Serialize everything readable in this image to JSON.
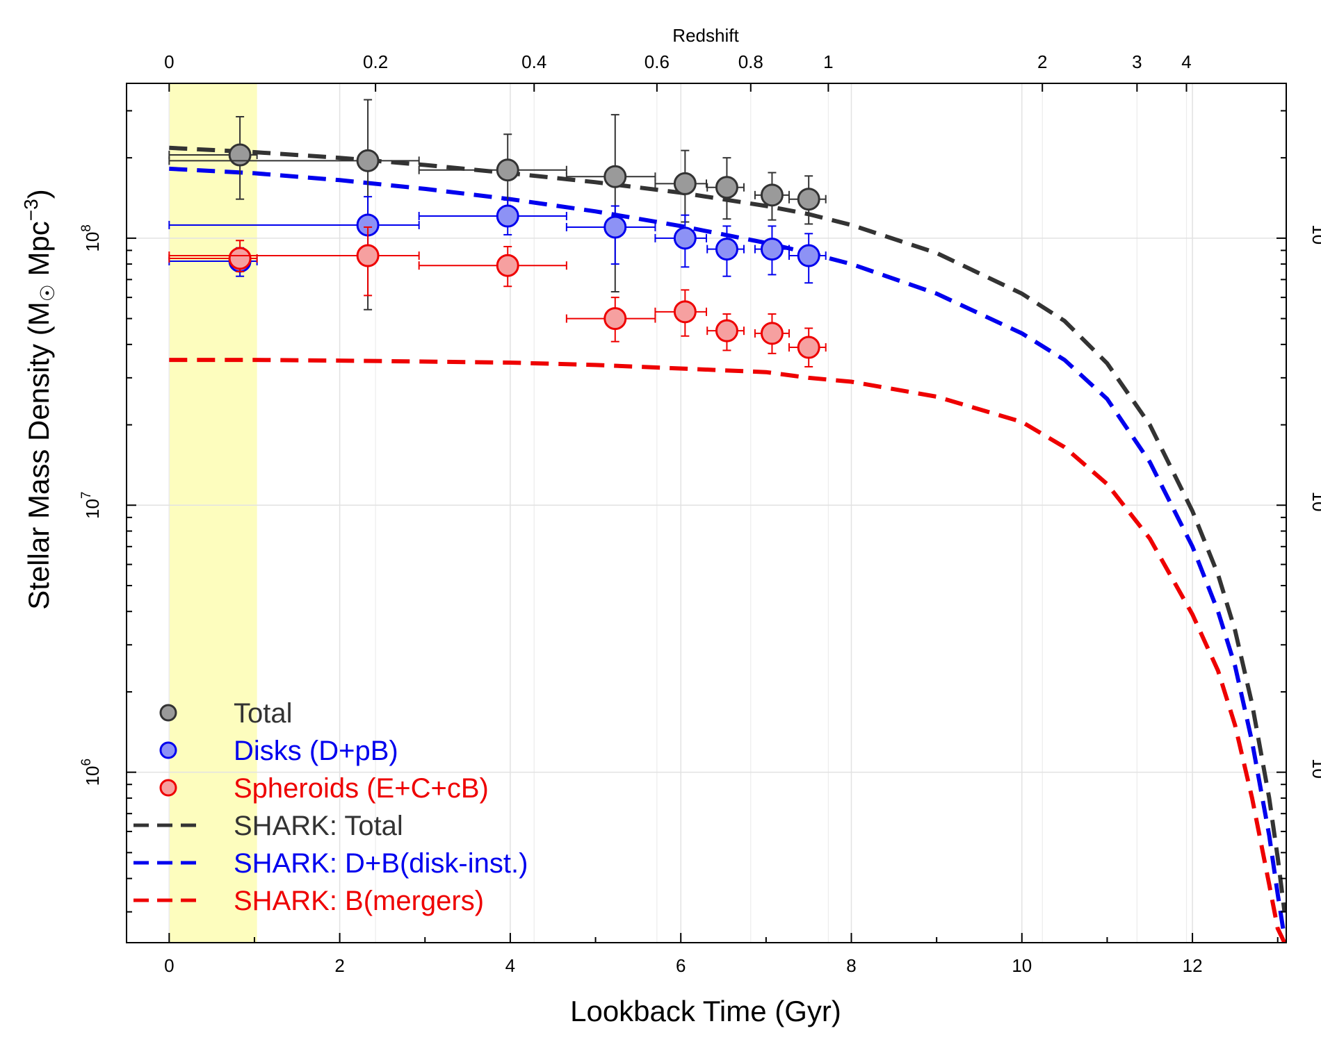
{
  "chart_data": {
    "type": "scatter",
    "xlabel": "Lookback Time (Gyr)",
    "ylabel_main": "Stellar Mass Density (M",
    "ylabel_unit": " Mpc",
    "ylabel_sup": "−3",
    "ylabel_close": ")",
    "top_axis_title": "Redshift",
    "xlim": [
      -0.5,
      13.1
    ],
    "ylim": [
      230000,
      380000000
    ],
    "yscale": "log",
    "grid": true,
    "x_ticks": [
      0,
      2,
      4,
      6,
      8,
      10,
      12
    ],
    "x_tick_labels": [
      "0",
      "2",
      "4",
      "6",
      "8",
      "10",
      "12"
    ],
    "x_minor_ticks": [
      1,
      3,
      5,
      7,
      9,
      11,
      13
    ],
    "y_major_ticks": [
      1000000,
      10000000,
      100000000
    ],
    "y_tick_labels": [
      {
        "base": "10",
        "exp": "6"
      },
      {
        "base": "10",
        "exp": "7"
      },
      {
        "base": "10",
        "exp": "8"
      }
    ],
    "top_ticks": [
      {
        "label": "0",
        "x": 0
      },
      {
        "label": "0.2",
        "x": 2.42
      },
      {
        "label": "0.4",
        "x": 4.28
      },
      {
        "label": "0.6",
        "x": 5.72
      },
      {
        "label": "0.8",
        "x": 6.82
      },
      {
        "label": "1",
        "x": 7.73
      },
      {
        "label": "2",
        "x": 10.24
      },
      {
        "label": "3",
        "x": 11.35
      },
      {
        "label": "4",
        "x": 11.93
      }
    ],
    "highlight_band": {
      "x0": 0,
      "x1": 1.03,
      "color": "#fdfdbe"
    },
    "series": [
      {
        "name": "Total",
        "kind": "points",
        "fill": "#9a9a9a",
        "stroke": "#333333",
        "points": [
          {
            "x": 0.83,
            "y": 205000000,
            "xerr": [
              0.83,
              0.2
            ],
            "yerr": [
              140000000,
              285000000
            ]
          },
          {
            "x": 2.33,
            "y": 195000000,
            "xerr": [
              2.33,
              0.6
            ],
            "yerr": [
              54000000,
              330000000
            ]
          },
          {
            "x": 3.97,
            "y": 180000000,
            "xerr": [
              1.04,
              0.69
            ],
            "yerr": [
              120000000,
              245000000
            ]
          },
          {
            "x": 5.23,
            "y": 170000000,
            "xerr": [
              0.57,
              0.47
            ],
            "yerr": [
              63000000,
              290000000
            ]
          },
          {
            "x": 6.05,
            "y": 160000000,
            "xerr": [
              0.35,
              0.25
            ],
            "yerr": [
              115000000,
              213000000
            ]
          },
          {
            "x": 6.54,
            "y": 155000000,
            "xerr": [
              0.23,
              0.2
            ],
            "yerr": [
              118000000,
              200000000
            ]
          },
          {
            "x": 7.07,
            "y": 145000000,
            "xerr": [
              0.2,
              0.2
            ],
            "yerr": [
              117000000,
              176000000
            ]
          },
          {
            "x": 7.5,
            "y": 140000000,
            "xerr": [
              0.23,
              0.2
            ],
            "yerr": [
              113000000,
              171000000
            ]
          }
        ]
      },
      {
        "name": "Disks (D+pB)",
        "kind": "points",
        "fill": "#8d92f5",
        "stroke": "#0000ee",
        "points": [
          {
            "x": 0.83,
            "y": 82000000,
            "xerr": [
              0.83,
              0.2
            ],
            "yerr": [
              72000000,
              92000000
            ]
          },
          {
            "x": 2.33,
            "y": 112000000,
            "xerr": [
              2.33,
              0.6
            ],
            "yerr": [
              84000000,
              143000000
            ]
          },
          {
            "x": 3.97,
            "y": 121000000,
            "xerr": [
              1.04,
              0.69
            ],
            "yerr": [
              103000000,
              139000000
            ]
          },
          {
            "x": 5.23,
            "y": 110000000,
            "xerr": [
              0.57,
              0.47
            ],
            "yerr": [
              80000000,
              132000000
            ]
          },
          {
            "x": 6.05,
            "y": 100000000,
            "xerr": [
              0.35,
              0.25
            ],
            "yerr": [
              78000000,
              122000000
            ]
          },
          {
            "x": 6.54,
            "y": 91000000,
            "xerr": [
              0.23,
              0.2
            ],
            "yerr": [
              72000000,
              111000000
            ]
          },
          {
            "x": 7.07,
            "y": 91000000,
            "xerr": [
              0.2,
              0.2
            ],
            "yerr": [
              73000000,
              111000000
            ]
          },
          {
            "x": 7.5,
            "y": 86000000,
            "xerr": [
              0.23,
              0.2
            ],
            "yerr": [
              68000000,
              104000000
            ]
          }
        ]
      },
      {
        "name": "Spheroids (E+C+cB)",
        "kind": "points",
        "fill": "#f6a0a0",
        "stroke": "#ee0000",
        "points": [
          {
            "x": 0.83,
            "y": 84000000,
            "xerr": [
              0.83,
              0.2
            ],
            "yerr": [
              75000000,
              98000000
            ]
          },
          {
            "x": 2.33,
            "y": 86000000,
            "xerr": [
              2.33,
              0.6
            ],
            "yerr": [
              61000000,
              110000000
            ]
          },
          {
            "x": 3.97,
            "y": 79000000,
            "xerr": [
              1.04,
              0.69
            ],
            "yerr": [
              66000000,
              93000000
            ]
          },
          {
            "x": 5.23,
            "y": 50000000,
            "xerr": [
              0.57,
              0.47
            ],
            "yerr": [
              41000000,
              60000000
            ]
          },
          {
            "x": 6.05,
            "y": 53000000,
            "xerr": [
              0.35,
              0.25
            ],
            "yerr": [
              43000000,
              64000000
            ]
          },
          {
            "x": 6.54,
            "y": 45000000,
            "xerr": [
              0.23,
              0.2
            ],
            "yerr": [
              38000000,
              52000000
            ]
          },
          {
            "x": 7.07,
            "y": 44000000,
            "xerr": [
              0.2,
              0.2
            ],
            "yerr": [
              37000000,
              52000000
            ]
          },
          {
            "x": 7.5,
            "y": 39000000,
            "xerr": [
              0.23,
              0.2
            ],
            "yerr": [
              33000000,
              46000000
            ]
          }
        ]
      },
      {
        "name": "SHARK: Total",
        "kind": "dashed",
        "color": "#333333",
        "x": [
          0,
          1,
          2,
          3,
          4,
          5,
          6,
          7,
          7.5,
          8,
          9,
          10,
          10.5,
          11,
          11.5,
          12,
          12.3,
          12.5,
          12.7,
          12.9,
          13.0,
          13.08
        ],
        "y": [
          218000000,
          210000000,
          200000000,
          188000000,
          175000000,
          162000000,
          148000000,
          132000000,
          123000000,
          112000000,
          88000000,
          62000000,
          49000000,
          34000000,
          20000000,
          9500000,
          5500000,
          3400000,
          1800000,
          800000,
          480000,
          300000
        ]
      },
      {
        "name": "SHARK: D+B(disk-inst.)",
        "kind": "dashed",
        "color": "#0000ee",
        "x": [
          0,
          1,
          2,
          3,
          4,
          5,
          6,
          7,
          7.5,
          8,
          9,
          10,
          10.5,
          11,
          11.5,
          12,
          12.3,
          12.5,
          12.7,
          12.9,
          13.0,
          13.08
        ],
        "y": [
          182000000,
          175000000,
          165000000,
          153000000,
          140000000,
          126000000,
          111000000,
          96000000,
          88000000,
          80000000,
          62000000,
          44000000,
          35000000,
          25000000,
          14500000,
          7000000,
          4000000,
          2500000,
          1300000,
          580000,
          350000,
          240000
        ]
      },
      {
        "name": "SHARK: B(mergers)",
        "kind": "dashed",
        "color": "#ee0000",
        "x": [
          0,
          1,
          2,
          3,
          4,
          5,
          6,
          7,
          7.5,
          8,
          9,
          10,
          10.5,
          11,
          11.5,
          12,
          12.3,
          12.5,
          12.7,
          12.9,
          13.0,
          13.08
        ],
        "y": [
          35000000,
          35000000,
          34800000,
          34500000,
          34200000,
          33500000,
          32500000,
          31500000,
          30000000,
          29000000,
          25500000,
          20500000,
          16500000,
          12000000,
          7500000,
          3900000,
          2400000,
          1500000,
          800000,
          380000,
          260000,
          230000
        ]
      }
    ],
    "legend": {
      "placement": "bottom-left",
      "entries": [
        {
          "label": "Total",
          "marker": "circle",
          "fill": "#9a9a9a",
          "stroke": "#333333",
          "text_color": "#333333"
        },
        {
          "label": "Disks (D+pB)",
          "marker": "circle",
          "fill": "#8d92f5",
          "stroke": "#0000ee",
          "text_color": "#0000ee"
        },
        {
          "label": "Spheroids (E+C+cB)",
          "marker": "circle",
          "fill": "#f6a0a0",
          "stroke": "#ee0000",
          "text_color": "#ee0000"
        },
        {
          "label": "SHARK: Total",
          "marker": "dash",
          "stroke": "#333333",
          "text_color": "#333333"
        },
        {
          "label": "SHARK: D+B(disk-inst.)",
          "marker": "dash",
          "stroke": "#0000ee",
          "text_color": "#0000ee"
        },
        {
          "label": "SHARK: B(mergers)",
          "marker": "dash",
          "stroke": "#ee0000",
          "text_color": "#ee0000"
        }
      ]
    }
  }
}
